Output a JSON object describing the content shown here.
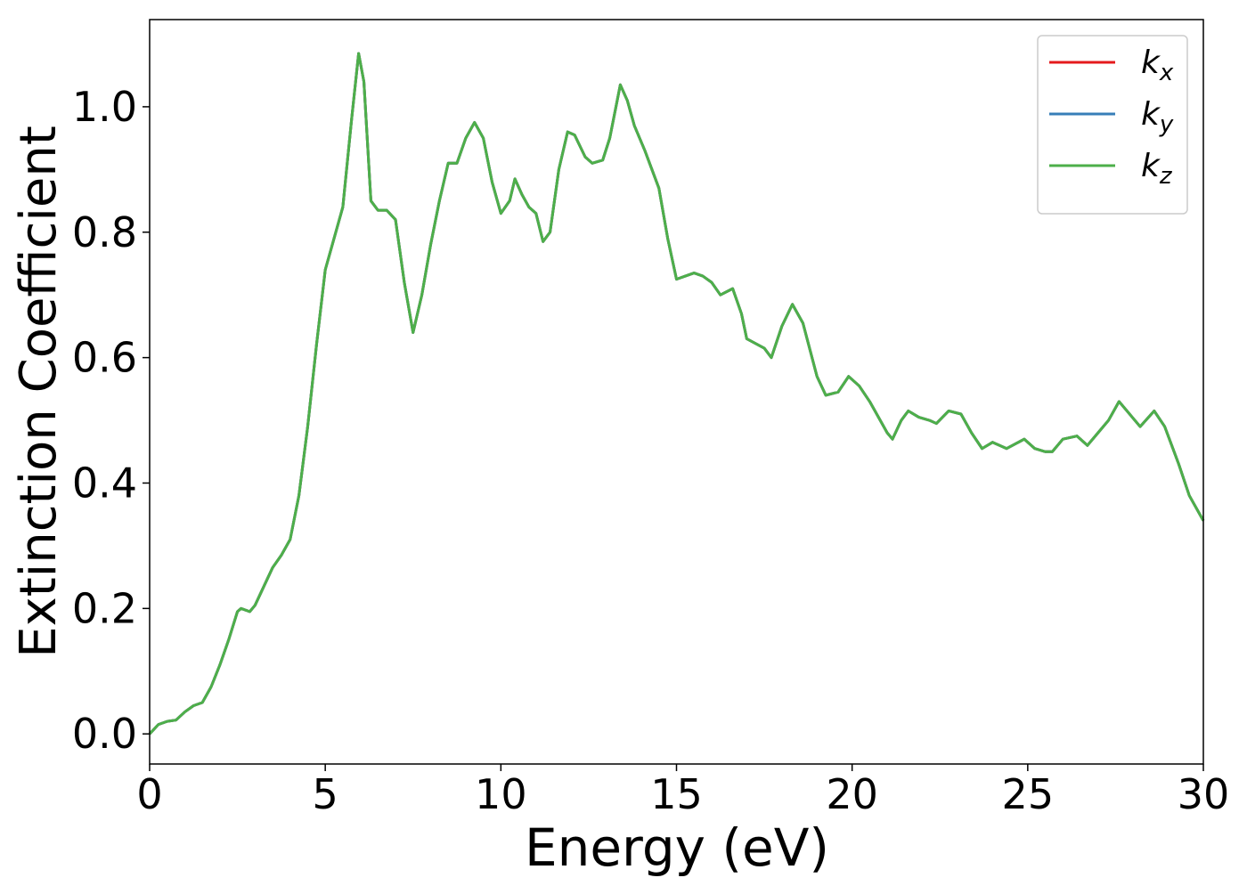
{
  "chart_data": {
    "type": "line",
    "xlabel": "Energy (eV)",
    "ylabel": "Extinction Coefficient",
    "x": [
      0,
      0.25,
      0.5,
      0.75,
      1.0,
      1.25,
      1.5,
      1.75,
      2.0,
      2.25,
      2.5,
      2.6,
      2.85,
      3.0,
      3.25,
      3.5,
      3.75,
      4.0,
      4.25,
      4.5,
      4.75,
      5.0,
      5.25,
      5.5,
      5.75,
      5.95,
      6.1,
      6.3,
      6.5,
      6.75,
      7.0,
      7.25,
      7.5,
      7.75,
      8.0,
      8.25,
      8.5,
      8.75,
      9.0,
      9.25,
      9.5,
      9.75,
      10.0,
      10.25,
      10.4,
      10.6,
      10.8,
      11.0,
      11.2,
      11.4,
      11.65,
      11.9,
      12.1,
      12.4,
      12.6,
      12.9,
      13.1,
      13.4,
      13.6,
      13.8,
      14.1,
      14.5,
      14.75,
      15.0,
      15.25,
      15.5,
      15.75,
      16.0,
      16.25,
      16.6,
      16.85,
      17.0,
      17.5,
      17.7,
      18.0,
      18.3,
      18.6,
      19.0,
      19.25,
      19.6,
      19.9,
      20.2,
      20.5,
      21.0,
      21.15,
      21.4,
      21.6,
      21.9,
      22.2,
      22.4,
      22.75,
      23.1,
      23.4,
      23.7,
      24.0,
      24.4,
      24.9,
      25.2,
      25.5,
      25.7,
      26.0,
      26.4,
      26.7,
      27.0,
      27.3,
      27.6,
      28.2,
      28.6,
      28.9,
      29.3,
      29.6,
      30.0
    ],
    "series": [
      {
        "name": "kx",
        "color": "#e41a1c",
        "values": [
          0,
          0.015,
          0.02,
          0.022,
          0.035,
          0.045,
          0.05,
          0.075,
          0.11,
          0.15,
          0.195,
          0.2,
          0.195,
          0.205,
          0.235,
          0.265,
          0.285,
          0.31,
          0.38,
          0.49,
          0.62,
          0.74,
          0.79,
          0.84,
          0.98,
          1.085,
          1.04,
          0.85,
          0.835,
          0.835,
          0.82,
          0.72,
          0.64,
          0.7,
          0.78,
          0.85,
          0.91,
          0.91,
          0.95,
          0.975,
          0.95,
          0.88,
          0.83,
          0.85,
          0.885,
          0.86,
          0.84,
          0.83,
          0.785,
          0.8,
          0.9,
          0.96,
          0.955,
          0.92,
          0.91,
          0.915,
          0.95,
          1.035,
          1.01,
          0.97,
          0.93,
          0.87,
          0.79,
          0.725,
          0.73,
          0.735,
          0.73,
          0.72,
          0.7,
          0.71,
          0.67,
          0.63,
          0.615,
          0.6,
          0.65,
          0.685,
          0.655,
          0.57,
          0.54,
          0.545,
          0.57,
          0.555,
          0.53,
          0.48,
          0.47,
          0.5,
          0.515,
          0.505,
          0.5,
          0.495,
          0.515,
          0.51,
          0.48,
          0.455,
          0.465,
          0.455,
          0.47,
          0.455,
          0.45,
          0.45,
          0.47,
          0.475,
          0.46,
          0.48,
          0.5,
          0.53,
          0.49,
          0.515,
          0.49,
          0.43,
          0.38,
          0.34
        ]
      },
      {
        "name": "ky",
        "color": "#377eb8",
        "values": [
          0,
          0.015,
          0.02,
          0.022,
          0.035,
          0.045,
          0.05,
          0.075,
          0.11,
          0.15,
          0.195,
          0.2,
          0.195,
          0.205,
          0.235,
          0.265,
          0.285,
          0.31,
          0.38,
          0.49,
          0.62,
          0.74,
          0.79,
          0.84,
          0.98,
          1.085,
          1.04,
          0.85,
          0.835,
          0.835,
          0.82,
          0.72,
          0.64,
          0.7,
          0.78,
          0.85,
          0.91,
          0.91,
          0.95,
          0.975,
          0.95,
          0.88,
          0.83,
          0.85,
          0.885,
          0.86,
          0.84,
          0.83,
          0.785,
          0.8,
          0.9,
          0.96,
          0.955,
          0.92,
          0.91,
          0.915,
          0.95,
          1.035,
          1.01,
          0.97,
          0.93,
          0.87,
          0.79,
          0.725,
          0.73,
          0.735,
          0.73,
          0.72,
          0.7,
          0.71,
          0.67,
          0.63,
          0.615,
          0.6,
          0.65,
          0.685,
          0.655,
          0.57,
          0.54,
          0.545,
          0.57,
          0.555,
          0.53,
          0.48,
          0.47,
          0.5,
          0.515,
          0.505,
          0.5,
          0.495,
          0.515,
          0.51,
          0.48,
          0.455,
          0.465,
          0.455,
          0.47,
          0.455,
          0.45,
          0.45,
          0.47,
          0.475,
          0.46,
          0.48,
          0.5,
          0.53,
          0.49,
          0.515,
          0.49,
          0.43,
          0.38,
          0.34
        ]
      },
      {
        "name": "kz",
        "color": "#4daf4a",
        "values": [
          0,
          0.015,
          0.02,
          0.022,
          0.035,
          0.045,
          0.05,
          0.075,
          0.11,
          0.15,
          0.195,
          0.2,
          0.195,
          0.205,
          0.235,
          0.265,
          0.285,
          0.31,
          0.38,
          0.49,
          0.62,
          0.74,
          0.79,
          0.84,
          0.98,
          1.085,
          1.04,
          0.85,
          0.835,
          0.835,
          0.82,
          0.72,
          0.64,
          0.7,
          0.78,
          0.85,
          0.91,
          0.91,
          0.95,
          0.975,
          0.95,
          0.88,
          0.83,
          0.85,
          0.885,
          0.86,
          0.84,
          0.83,
          0.785,
          0.8,
          0.9,
          0.96,
          0.955,
          0.92,
          0.91,
          0.915,
          0.95,
          1.035,
          1.01,
          0.97,
          0.93,
          0.87,
          0.79,
          0.725,
          0.73,
          0.735,
          0.73,
          0.72,
          0.7,
          0.71,
          0.67,
          0.63,
          0.615,
          0.6,
          0.65,
          0.685,
          0.655,
          0.57,
          0.54,
          0.545,
          0.57,
          0.555,
          0.53,
          0.48,
          0.47,
          0.5,
          0.515,
          0.505,
          0.5,
          0.495,
          0.515,
          0.51,
          0.48,
          0.455,
          0.465,
          0.455,
          0.47,
          0.455,
          0.45,
          0.45,
          0.47,
          0.475,
          0.46,
          0.48,
          0.5,
          0.53,
          0.49,
          0.515,
          0.49,
          0.43,
          0.38,
          0.34
        ]
      }
    ],
    "xlim": [
      0,
      30
    ],
    "xticks": [
      0,
      5,
      10,
      15,
      20,
      25,
      30
    ],
    "ylim": [
      -0.048,
      1.139
    ],
    "yticks": [
      {
        "value": 0,
        "label": "0.0"
      },
      0.2,
      0.4,
      0.6,
      0.8,
      {
        "value": 1,
        "label": "1.0"
      }
    ],
    "legend": "upper right"
  }
}
